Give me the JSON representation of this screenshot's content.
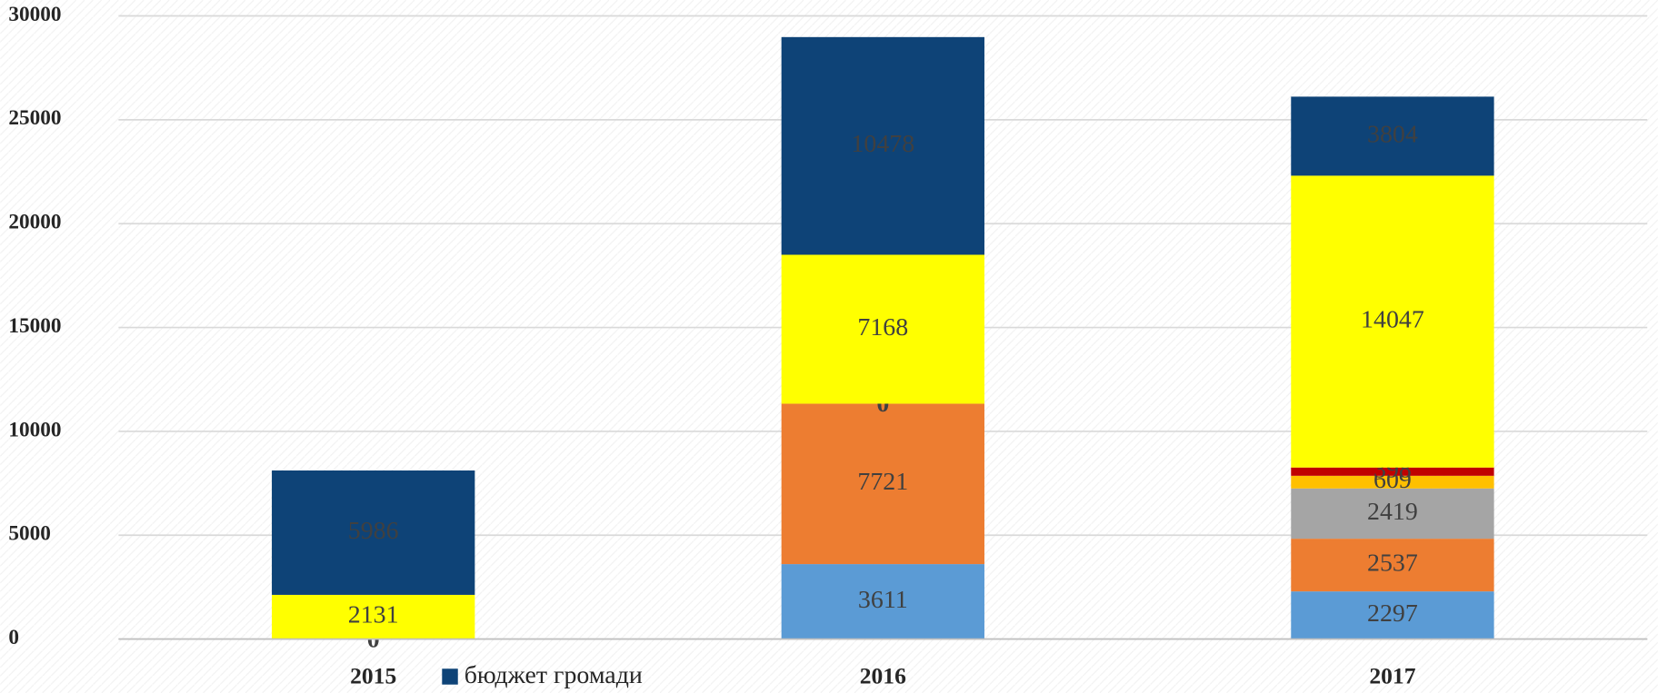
{
  "chart_data": {
    "type": "stacked_bar",
    "categories": [
      "2015",
      "2016",
      "2017"
    ],
    "series": [
      {
        "color": "#5b9bd5",
        "values": [
          0,
          3611,
          2297
        ]
      },
      {
        "color": "#ed7d31",
        "values": [
          null,
          7721,
          2537
        ]
      },
      {
        "color": "#a5a5a5",
        "values": [
          null,
          0,
          2419
        ]
      },
      {
        "color": "#ffc000",
        "values": [
          null,
          null,
          609
        ]
      },
      {
        "color": "#c00000",
        "values": [
          null,
          null,
          398
        ]
      },
      {
        "color": "#ffff00",
        "values": [
          2131,
          7168,
          14047
        ]
      },
      {
        "name": "бюджет громади",
        "color": "#0e4377",
        "values": [
          5986,
          10478,
          3804
        ]
      }
    ],
    "ylim": [
      0,
      30000
    ],
    "yticks": [
      0,
      5000,
      10000,
      15000,
      20000,
      25000,
      30000
    ],
    "grid": true
  }
}
